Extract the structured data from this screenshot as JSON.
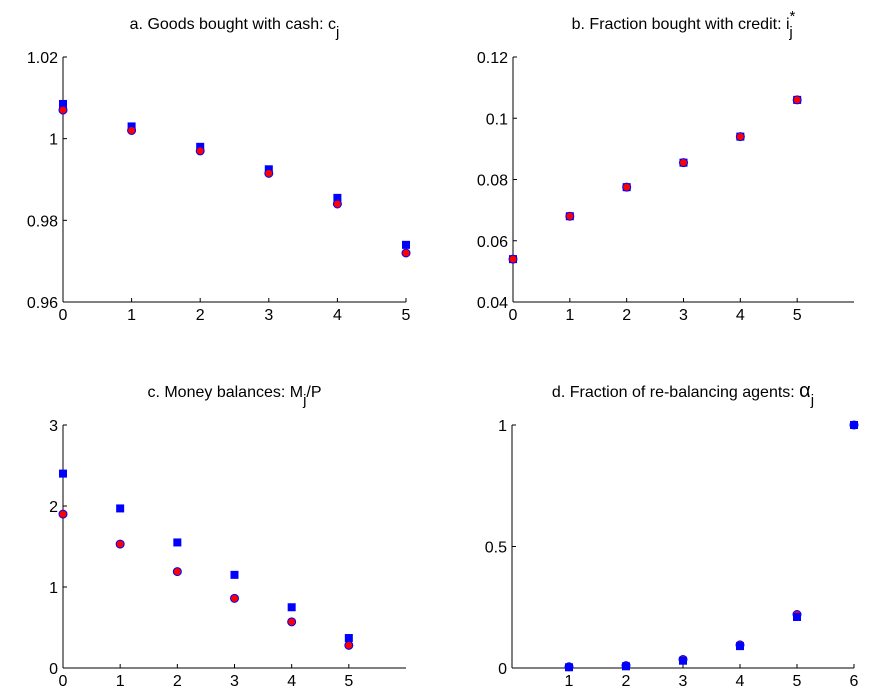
{
  "chart_data": [
    {
      "type": "scatter",
      "title": [
        {
          "text": "a. Goods bought with cash: c",
          "style": "normal"
        },
        {
          "text": "j",
          "style": "sub"
        }
      ],
      "x": [
        0,
        1,
        2,
        3,
        4,
        5
      ],
      "series": [
        {
          "color": "#0000ff",
          "marker": "square",
          "values": [
            1.0085,
            1.003,
            0.998,
            0.9925,
            0.9855,
            0.974
          ]
        },
        {
          "color": "#ff0000",
          "edgecolor": "#0000ff",
          "marker": "circle",
          "values": [
            1.007,
            1.002,
            0.997,
            0.9915,
            0.984,
            0.972
          ]
        }
      ],
      "xlim": [
        0,
        5
      ],
      "xticks": [
        0,
        1,
        2,
        3,
        4,
        5
      ],
      "ylim": [
        0.96,
        1.02
      ],
      "yticks": [
        0.96,
        0.98,
        {
          "value": 1,
          "label": "1"
        },
        1.02
      ]
    },
    {
      "type": "scatter",
      "title": [
        {
          "text": "b. Fraction bought with credit: i",
          "style": "normal"
        },
        {
          "text": "*",
          "style": "sup"
        },
        {
          "text": "j",
          "style": "sub"
        }
      ],
      "x": [
        0,
        1,
        2,
        3,
        4,
        5
      ],
      "series": [
        {
          "color": "#0000ff",
          "marker": "square",
          "values": [
            0.054,
            0.068,
            0.0775,
            0.0855,
            0.094,
            0.106
          ]
        },
        {
          "color": "#ff0000",
          "edgecolor": "#0000ff",
          "marker": "circle",
          "values": [
            0.054,
            0.068,
            0.0775,
            0.0855,
            0.094,
            0.106
          ]
        }
      ],
      "xlim": [
        0,
        6
      ],
      "xticks": [
        0,
        1,
        2,
        3,
        4,
        5
      ],
      "ylim": [
        0.04,
        0.12
      ],
      "yticks": [
        0.04,
        0.06,
        0.08,
        0.1,
        0.12
      ]
    },
    {
      "type": "scatter",
      "title": [
        {
          "text": "c. Money balances: M",
          "style": "normal"
        },
        {
          "text": "j",
          "style": "sub"
        },
        {
          "text": "/P",
          "style": "normal"
        }
      ],
      "x": [
        0,
        1,
        2,
        3,
        4,
        5
      ],
      "series": [
        {
          "color": "#0000ff",
          "marker": "square",
          "values": [
            2.4,
            1.97,
            1.55,
            1.15,
            0.75,
            0.37
          ]
        },
        {
          "color": "#ff0000",
          "edgecolor": "#0000ff",
          "marker": "circle",
          "values": [
            1.9,
            1.53,
            1.19,
            0.86,
            0.57,
            0.28
          ]
        }
      ],
      "xlim": [
        0,
        6
      ],
      "xticks": [
        0,
        1,
        2,
        3,
        4,
        5
      ],
      "ylim": [
        0,
        3
      ],
      "yticks": [
        0,
        1,
        2,
        3
      ]
    },
    {
      "type": "scatter",
      "title": [
        {
          "text": "d. Fraction of re-balancing agents: ",
          "style": "normal"
        },
        {
          "text": "α",
          "style": "big"
        },
        {
          "text": "j",
          "style": "sub"
        }
      ],
      "x": [
        1,
        2,
        3,
        4,
        5,
        6
      ],
      "series": [
        {
          "color": "#ff0000",
          "edgecolor": "#0000ff",
          "marker": "circle",
          "values": [
            0.005,
            0.01,
            0.035,
            0.095,
            0.22,
            1.0
          ]
        },
        {
          "color": "#0000ff",
          "marker": "square",
          "values": [
            0.003,
            0.007,
            0.03,
            0.09,
            0.21,
            1.0
          ]
        }
      ],
      "xlim": [
        0,
        6
      ],
      "xticks": [
        1,
        2,
        3,
        4,
        5,
        6
      ],
      "ylim": [
        0,
        1
      ],
      "yticks": [
        0,
        0.5,
        1
      ]
    }
  ]
}
